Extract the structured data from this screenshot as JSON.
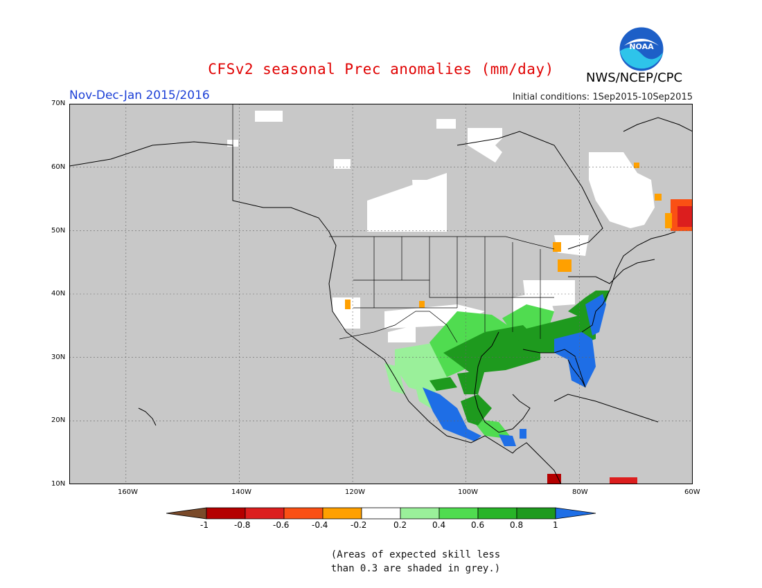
{
  "header": {
    "title": "CFSv2 seasonal Prec anomalies (mm/day)",
    "agency": "NWS/NCEP/CPC",
    "season": "Nov-Dec-Jan 2015/2016",
    "initial_conditions": "Initial conditions: 1Sep2015-10Sep2015",
    "logo_text": "NOAA"
  },
  "map": {
    "lat_labels": [
      "70N",
      "60N",
      "50N",
      "40N",
      "30N",
      "20N",
      "10N"
    ],
    "lon_labels": [
      "160W",
      "140W",
      "120W",
      "100W",
      "80W",
      "60W"
    ],
    "lat_range": [
      10,
      70
    ],
    "lon_range": [
      -170,
      -60
    ],
    "background_grey_meaning": "skill less than 0.3",
    "colors": {
      "grey": "#c8c8c8",
      "ocean_grey": "#c8c8c8"
    }
  },
  "legend": {
    "tick_labels": [
      "-1",
      "-0.8",
      "-0.6",
      "-0.4",
      "-0.2",
      "0.2",
      "0.4",
      "0.6",
      "0.8",
      "1"
    ],
    "colors": [
      "#7a4a2a",
      "#b40000",
      "#dc1e1e",
      "#fa5014",
      "#ffa000",
      "#ffffff",
      "#9af09a",
      "#50dc50",
      "#28b428",
      "#1e9a1e",
      "#1e6ee6"
    ]
  },
  "footnote": {
    "line1": "(Areas of expected skill less",
    "line2": "than 0.3 are shaded in grey.)"
  }
}
